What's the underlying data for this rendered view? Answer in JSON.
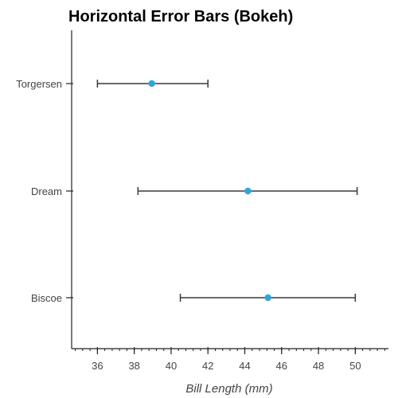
{
  "chart_data": {
    "type": "scatter",
    "title": "Horizontal Error Bars (Bokeh)",
    "xlabel": "Bill Length (mm)",
    "ylabel": "",
    "categories": [
      "Torgersen",
      "Dream",
      "Biscoe"
    ],
    "xlim": [
      34.6,
      51.8
    ],
    "x_ticks": [
      36,
      38,
      40,
      42,
      44,
      46,
      48,
      50
    ],
    "x_minor_step": 0.4,
    "grid": false,
    "series": [
      {
        "points": [
          {
            "category": "Torgersen",
            "x": 38.95,
            "lower": 36.0,
            "upper": 42.0
          },
          {
            "category": "Dream",
            "x": 44.17,
            "lower": 38.2,
            "upper": 50.1
          },
          {
            "category": "Biscoe",
            "x": 45.26,
            "lower": 40.5,
            "upper": 50.0
          }
        ]
      }
    ],
    "colors": {
      "point": "#29a8e0",
      "error_bar": "#3a3a3a",
      "axis": "#222222",
      "tick_label": "#444444"
    }
  }
}
